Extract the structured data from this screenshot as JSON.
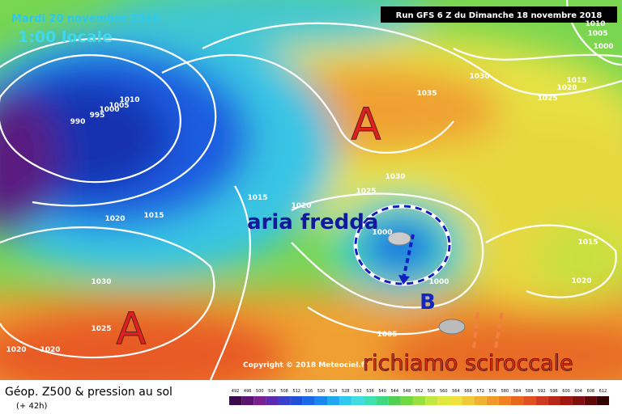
{
  "header": {
    "date": "Mardi 20 novembre 2018",
    "time": "1:00 locale",
    "run": "Run GFS 6 Z du Dimanche 18 novembre 2018"
  },
  "annotations": {
    "high_north": "A",
    "high_south": "A",
    "cold_air": "aria fredda",
    "low": "B",
    "sirocco": "richiamo sciroccale"
  },
  "copyright": "Copyright © 2018 Meteociel.fr",
  "footer": {
    "title": "Géop. Z500 & pression au sol",
    "lead": "(+ 42h)"
  },
  "colorbar": {
    "labels": [
      492,
      496,
      500,
      504,
      508,
      512,
      516,
      520,
      524,
      528,
      532,
      536,
      540,
      544,
      548,
      552,
      556,
      560,
      564,
      568,
      572,
      576,
      580,
      584,
      588,
      592,
      596,
      600,
      604,
      608,
      612
    ],
    "colors": [
      "#3a0a4a",
      "#5a1570",
      "#7a2090",
      "#5a2ab0",
      "#3a40c8",
      "#2050d8",
      "#1a6ae8",
      "#1a88f0",
      "#20a8f0",
      "#30c8f0",
      "#40dce0",
      "#40e0b0",
      "#40d880",
      "#50d050",
      "#70d840",
      "#98e040",
      "#c0e840",
      "#e0e840",
      "#f0e040",
      "#f0c838",
      "#f0b030",
      "#f09828",
      "#f08020",
      "#e86820",
      "#e05020",
      "#d03820",
      "#b82818",
      "#a01810",
      "#801010",
      "#600808",
      "#300404"
    ]
  },
  "isobar_labels": [
    "1010",
    "1005",
    "1000",
    "1030",
    "1015",
    "1020",
    "1025",
    "1035",
    "990",
    "995",
    "1000",
    "1005",
    "1010",
    "1030",
    "1025",
    "1015",
    "1020",
    "1020",
    "1015",
    "1030",
    "1025",
    "1020",
    "1020",
    "1000",
    "1005",
    "1015",
    "1020",
    "1000"
  ]
}
